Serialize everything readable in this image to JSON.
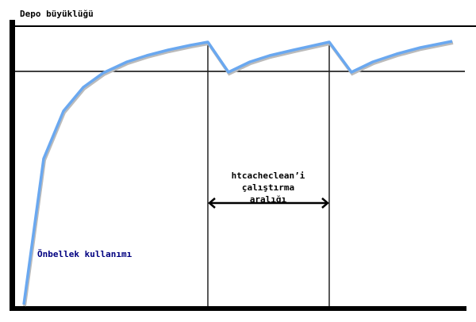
{
  "labels": {
    "y_axis": "Depo büyüklüğü",
    "curve": "Önbellek kullanımı",
    "interval_line1": "htcacheclean’i",
    "interval_line2": "çalıştırma",
    "interval_line3": "aralığı"
  },
  "colors": {
    "curve": "#6aa8f0",
    "curve_label": "#000080",
    "lines": "#000000"
  }
}
